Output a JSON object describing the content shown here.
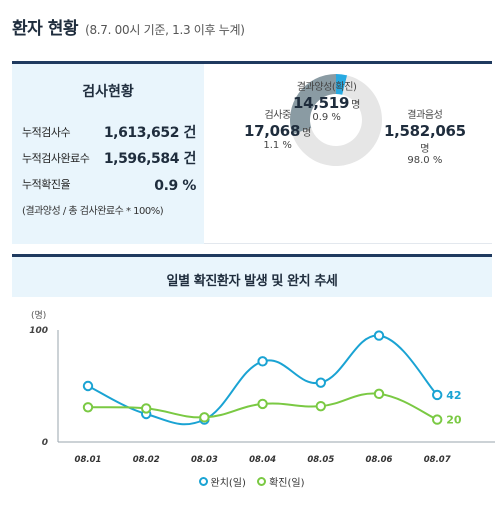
{
  "header": {
    "title": "환자 현황",
    "subtitle": "(8.7. 00시 기준, 1.3 이후 누계)"
  },
  "test_status": {
    "title": "검사현황",
    "rows": [
      {
        "label": "누적검사수",
        "value": "1,613,652 건"
      },
      {
        "label": "누적검사완료수",
        "value": "1,596,584 건"
      },
      {
        "label": "누적확진율",
        "value": "0.9 %"
      }
    ],
    "note": "(결과양성 / 총 검사완료수 * 100%)"
  },
  "donut": {
    "colors": {
      "positive": "#27a9e1",
      "testing": "#8a9ba3",
      "negative": "#e6e6e6"
    },
    "positive": {
      "label": "결과양성(확진)",
      "value": "14,519",
      "unit": "명",
      "pct": "0.9 %",
      "share": 0.9
    },
    "testing": {
      "label": "검사중",
      "value": "17,068",
      "unit": "명",
      "pct": "1.1 %",
      "share": 1.1
    },
    "negative": {
      "label": "결과음성",
      "value": "1,582,065",
      "unit": "명",
      "pct": "98.0 %",
      "share": 98.0
    }
  },
  "chart_data": {
    "type": "line",
    "title": "일별 확진환자 발생 및 완치 추세",
    "ylabel": "(명)",
    "ylim": [
      0,
      100
    ],
    "yticks": [
      "100",
      "0"
    ],
    "categories": [
      "08.01",
      "08.02",
      "08.03",
      "08.04",
      "08.05",
      "08.06",
      "08.07"
    ],
    "series": [
      {
        "name": "완치(일)",
        "color": "#1aa3d3",
        "values": [
          50,
          25,
          20,
          72,
          53,
          95,
          42
        ],
        "end_label": "42"
      },
      {
        "name": "확진(일)",
        "color": "#7ac943",
        "values": [
          31,
          30,
          22,
          34,
          32,
          43,
          20
        ],
        "end_label": "20"
      }
    ],
    "grid": false,
    "legend": "bottom-center"
  }
}
